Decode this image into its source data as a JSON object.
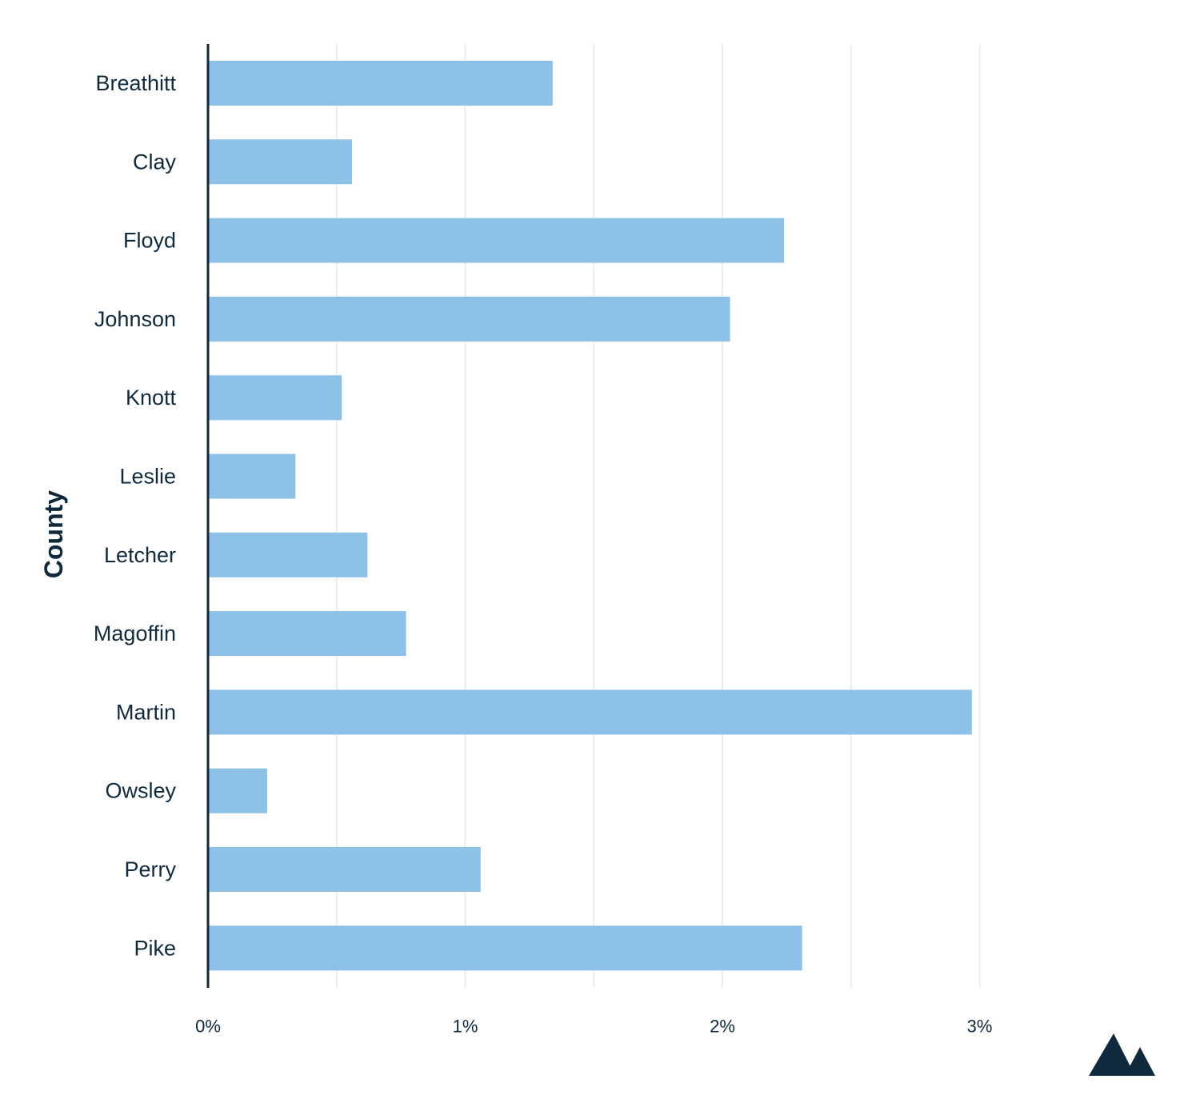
{
  "colors": {
    "bar": "#8ec1e8",
    "grid": "#e3eef7",
    "axis": "#0f2a3d",
    "text": "#0f2a3d",
    "logo": "#0f2a3d"
  },
  "logo": {
    "icon": "mountain-logo-icon"
  },
  "chart_data": {
    "type": "bar",
    "orientation": "horizontal",
    "title": "",
    "xlabel": "",
    "ylabel": "County",
    "xlim": [
      0,
      3.4
    ],
    "x_ticks": [
      0,
      1,
      2,
      3
    ],
    "x_tick_labels": [
      "0%",
      "1%",
      "2%",
      "3%"
    ],
    "grid": "vertical, every 0.5",
    "categories": [
      "Breathitt",
      "Clay",
      "Floyd",
      "Johnson",
      "Knott",
      "Leslie",
      "Letcher",
      "Magoffin",
      "Martin",
      "Owsley",
      "Perry",
      "Pike"
    ],
    "values": [
      1.34,
      0.56,
      2.24,
      2.03,
      0.52,
      0.34,
      0.62,
      0.77,
      2.97,
      0.23,
      1.06,
      2.31
    ],
    "unit": "%"
  }
}
